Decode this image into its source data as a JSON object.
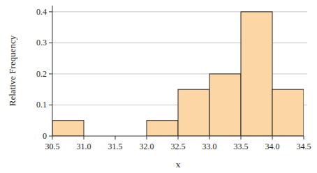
{
  "chart_data": {
    "type": "histogram",
    "x_label": "x",
    "y_label": "Relative Frequency",
    "bins": [
      30.5,
      31.0,
      31.5,
      32.0,
      32.5,
      33.0,
      33.5,
      34.0,
      34.5
    ],
    "values": [
      0.05,
      0,
      0,
      0.05,
      0.15,
      0.2,
      0.4,
      0.15
    ],
    "color": "#fdd6a6",
    "xlim": [
      30.5,
      34.5
    ],
    "xticks": [
      30.5,
      {
        "value": 31,
        "label": "31.0"
      },
      31.5,
      {
        "value": 32,
        "label": "32.0"
      },
      32.5,
      {
        "value": 33,
        "label": "33.0"
      },
      33.5,
      {
        "value": 34,
        "label": "34.0"
      },
      34.5
    ],
    "ylim": [
      0,
      0.42
    ],
    "yticks": [
      0,
      0.1,
      0.2,
      0.3,
      0.4
    ],
    "grid": true
  }
}
